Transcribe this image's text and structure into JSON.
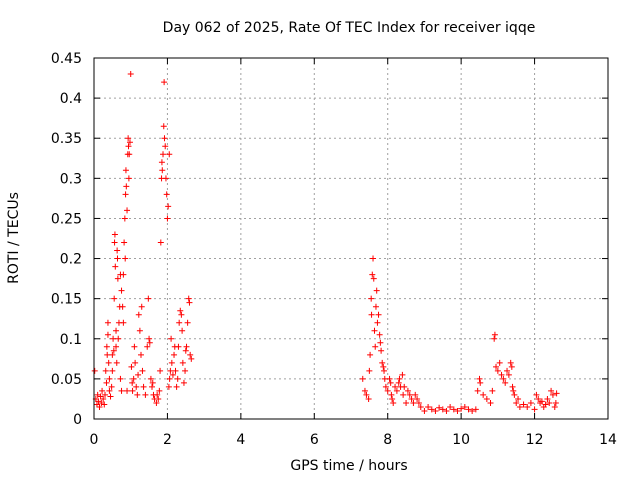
{
  "chart_data": {
    "type": "scatter",
    "title": "Day 062 of 2025, Rate Of TEC Index for receiver iqqe",
    "xlabel": "GPS time / hours",
    "ylabel": "ROTI / TECUs",
    "xlim": [
      0,
      14
    ],
    "ylim": [
      0,
      0.45
    ],
    "xticks": [
      "0",
      "2",
      "4",
      "6",
      "8",
      "10",
      "12",
      "14"
    ],
    "yticks": [
      "0",
      "0.05",
      "0.1",
      "0.15",
      "0.2",
      "0.25",
      "0.3",
      "0.35",
      "0.4",
      "0.45"
    ],
    "grid": true,
    "marker": "plus",
    "color": "#ff0000",
    "series": [
      {
        "name": "ROTI",
        "points": [
          [
            0.02,
            0.06
          ],
          [
            0.05,
            0.025
          ],
          [
            0.08,
            0.018
          ],
          [
            0.1,
            0.03
          ],
          [
            0.12,
            0.022
          ],
          [
            0.15,
            0.015
          ],
          [
            0.18,
            0.028
          ],
          [
            0.2,
            0.02
          ],
          [
            0.22,
            0.035
          ],
          [
            0.25,
            0.025
          ],
          [
            0.28,
            0.018
          ],
          [
            0.3,
            0.03
          ],
          [
            0.32,
            0.06
          ],
          [
            0.34,
            0.045
          ],
          [
            0.35,
            0.09
          ],
          [
            0.36,
            0.08
          ],
          [
            0.38,
            0.12
          ],
          [
            0.38,
            0.105
          ],
          [
            0.4,
            0.07
          ],
          [
            0.42,
            0.05
          ],
          [
            0.42,
            0.035
          ],
          [
            0.45,
            0.028
          ],
          [
            0.48,
            0.04
          ],
          [
            0.5,
            0.06
          ],
          [
            0.5,
            0.08
          ],
          [
            0.52,
            0.1
          ],
          [
            0.54,
            0.085
          ],
          [
            0.55,
            0.15
          ],
          [
            0.56,
            0.22
          ],
          [
            0.57,
            0.23
          ],
          [
            0.58,
            0.19
          ],
          [
            0.6,
            0.11
          ],
          [
            0.6,
            0.09
          ],
          [
            0.62,
            0.07
          ],
          [
            0.63,
            0.21
          ],
          [
            0.64,
            0.2
          ],
          [
            0.65,
            0.175
          ],
          [
            0.66,
            0.1
          ],
          [
            0.68,
            0.12
          ],
          [
            0.7,
            0.14
          ],
          [
            0.72,
            0.18
          ],
          [
            0.72,
            0.05
          ],
          [
            0.75,
            0.035
          ],
          [
            0.75,
            0.16
          ],
          [
            0.78,
            0.14
          ],
          [
            0.8,
            0.12
          ],
          [
            0.8,
            0.18
          ],
          [
            0.82,
            0.22
          ],
          [
            0.84,
            0.25
          ],
          [
            0.85,
            0.2
          ],
          [
            0.86,
            0.28
          ],
          [
            0.87,
            0.31
          ],
          [
            0.88,
            0.29
          ],
          [
            0.9,
            0.26
          ],
          [
            0.9,
            0.035
          ],
          [
            0.92,
            0.33
          ],
          [
            0.93,
            0.35
          ],
          [
            0.94,
            0.34
          ],
          [
            0.95,
            0.3
          ],
          [
            0.96,
            0.33
          ],
          [
            0.98,
            0.345
          ],
          [
            1.0,
            0.43
          ],
          [
            1.02,
            0.065
          ],
          [
            1.04,
            0.045
          ],
          [
            1.05,
            0.035
          ],
          [
            1.08,
            0.05
          ],
          [
            1.1,
            0.09
          ],
          [
            1.12,
            0.07
          ],
          [
            1.15,
            0.04
          ],
          [
            1.18,
            0.03
          ],
          [
            1.2,
            0.055
          ],
          [
            1.22,
            0.13
          ],
          [
            1.25,
            0.11
          ],
          [
            1.28,
            0.08
          ],
          [
            1.3,
            0.14
          ],
          [
            1.32,
            0.06
          ],
          [
            1.35,
            0.04
          ],
          [
            1.4,
            0.03
          ],
          [
            1.45,
            0.09
          ],
          [
            1.48,
            0.15
          ],
          [
            1.5,
            0.1
          ],
          [
            1.52,
            0.095
          ],
          [
            1.55,
            0.05
          ],
          [
            1.58,
            0.04
          ],
          [
            1.6,
            0.045
          ],
          [
            1.62,
            0.03
          ],
          [
            1.65,
            0.025
          ],
          [
            1.7,
            0.02
          ],
          [
            1.72,
            0.03
          ],
          [
            1.75,
            0.025
          ],
          [
            1.78,
            0.035
          ],
          [
            1.8,
            0.06
          ],
          [
            1.82,
            0.22
          ],
          [
            1.84,
            0.3
          ],
          [
            1.85,
            0.32
          ],
          [
            1.86,
            0.31
          ],
          [
            1.88,
            0.33
          ],
          [
            1.9,
            0.365
          ],
          [
            1.91,
            0.42
          ],
          [
            1.92,
            0.35
          ],
          [
            1.94,
            0.34
          ],
          [
            1.96,
            0.3
          ],
          [
            1.98,
            0.28
          ],
          [
            2.0,
            0.25
          ],
          [
            2.02,
            0.265
          ],
          [
            2.04,
            0.04
          ],
          [
            2.05,
            0.33
          ],
          [
            2.06,
            0.05
          ],
          [
            2.08,
            0.06
          ],
          [
            2.1,
            0.1
          ],
          [
            2.12,
            0.07
          ],
          [
            2.15,
            0.055
          ],
          [
            2.18,
            0.08
          ],
          [
            2.2,
            0.09
          ],
          [
            2.22,
            0.06
          ],
          [
            2.25,
            0.04
          ],
          [
            2.28,
            0.05
          ],
          [
            2.3,
            0.09
          ],
          [
            2.32,
            0.12
          ],
          [
            2.35,
            0.135
          ],
          [
            2.38,
            0.13
          ],
          [
            2.4,
            0.11
          ],
          [
            2.42,
            0.07
          ],
          [
            2.45,
            0.045
          ],
          [
            2.48,
            0.06
          ],
          [
            2.5,
            0.085
          ],
          [
            2.52,
            0.09
          ],
          [
            2.55,
            0.12
          ],
          [
            2.58,
            0.15
          ],
          [
            2.6,
            0.145
          ],
          [
            2.62,
            0.08
          ],
          [
            2.65,
            0.075
          ],
          [
            7.32,
            0.05
          ],
          [
            7.38,
            0.035
          ],
          [
            7.42,
            0.03
          ],
          [
            7.48,
            0.025
          ],
          [
            7.5,
            0.06
          ],
          [
            7.52,
            0.08
          ],
          [
            7.55,
            0.15
          ],
          [
            7.56,
            0.13
          ],
          [
            7.58,
            0.18
          ],
          [
            7.6,
            0.2
          ],
          [
            7.62,
            0.175
          ],
          [
            7.64,
            0.11
          ],
          [
            7.66,
            0.09
          ],
          [
            7.68,
            0.14
          ],
          [
            7.7,
            0.16
          ],
          [
            7.72,
            0.12
          ],
          [
            7.75,
            0.13
          ],
          [
            7.78,
            0.105
          ],
          [
            7.8,
            0.095
          ],
          [
            7.82,
            0.085
          ],
          [
            7.85,
            0.07
          ],
          [
            7.88,
            0.065
          ],
          [
            7.9,
            0.06
          ],
          [
            7.92,
            0.05
          ],
          [
            7.95,
            0.04
          ],
          [
            8.0,
            0.035
          ],
          [
            8.05,
            0.05
          ],
          [
            8.08,
            0.045
          ],
          [
            8.1,
            0.03
          ],
          [
            8.12,
            0.025
          ],
          [
            8.15,
            0.02
          ],
          [
            8.2,
            0.04
          ],
          [
            8.25,
            0.035
          ],
          [
            8.3,
            0.045
          ],
          [
            8.32,
            0.05
          ],
          [
            8.35,
            0.04
          ],
          [
            8.4,
            0.055
          ],
          [
            8.42,
            0.03
          ],
          [
            8.45,
            0.04
          ],
          [
            8.5,
            0.02
          ],
          [
            8.55,
            0.035
          ],
          [
            8.6,
            0.03
          ],
          [
            8.65,
            0.025
          ],
          [
            8.7,
            0.02
          ],
          [
            8.75,
            0.03
          ],
          [
            8.8,
            0.025
          ],
          [
            8.85,
            0.02
          ],
          [
            8.9,
            0.015
          ],
          [
            9.0,
            0.01
          ],
          [
            9.1,
            0.015
          ],
          [
            9.2,
            0.012
          ],
          [
            9.3,
            0.01
          ],
          [
            9.4,
            0.014
          ],
          [
            9.5,
            0.012
          ],
          [
            9.6,
            0.01
          ],
          [
            9.7,
            0.015
          ],
          [
            9.8,
            0.012
          ],
          [
            9.9,
            0.01
          ],
          [
            10.0,
            0.013
          ],
          [
            10.1,
            0.015
          ],
          [
            10.2,
            0.012
          ],
          [
            10.3,
            0.01
          ],
          [
            10.4,
            0.012
          ],
          [
            10.45,
            0.035
          ],
          [
            10.5,
            0.05
          ],
          [
            10.52,
            0.045
          ],
          [
            10.6,
            0.03
          ],
          [
            10.7,
            0.025
          ],
          [
            10.8,
            0.02
          ],
          [
            10.85,
            0.035
          ],
          [
            10.9,
            0.1
          ],
          [
            10.92,
            0.105
          ],
          [
            10.95,
            0.065
          ],
          [
            11.0,
            0.06
          ],
          [
            11.05,
            0.07
          ],
          [
            11.1,
            0.055
          ],
          [
            11.15,
            0.05
          ],
          [
            11.2,
            0.045
          ],
          [
            11.25,
            0.06
          ],
          [
            11.3,
            0.055
          ],
          [
            11.35,
            0.07
          ],
          [
            11.38,
            0.065
          ],
          [
            11.4,
            0.04
          ],
          [
            11.42,
            0.035
          ],
          [
            11.45,
            0.03
          ],
          [
            11.5,
            0.02
          ],
          [
            11.55,
            0.025
          ],
          [
            11.6,
            0.015
          ],
          [
            11.7,
            0.018
          ],
          [
            11.8,
            0.015
          ],
          [
            11.9,
            0.02
          ],
          [
            12.0,
            0.012
          ],
          [
            12.05,
            0.03
          ],
          [
            12.1,
            0.025
          ],
          [
            12.15,
            0.02
          ],
          [
            12.2,
            0.022
          ],
          [
            12.25,
            0.015
          ],
          [
            12.3,
            0.018
          ],
          [
            12.35,
            0.025
          ],
          [
            12.4,
            0.02
          ],
          [
            12.45,
            0.035
          ],
          [
            12.5,
            0.03
          ],
          [
            12.55,
            0.015
          ],
          [
            12.58,
            0.02
          ],
          [
            12.6,
            0.032
          ]
        ]
      }
    ]
  }
}
